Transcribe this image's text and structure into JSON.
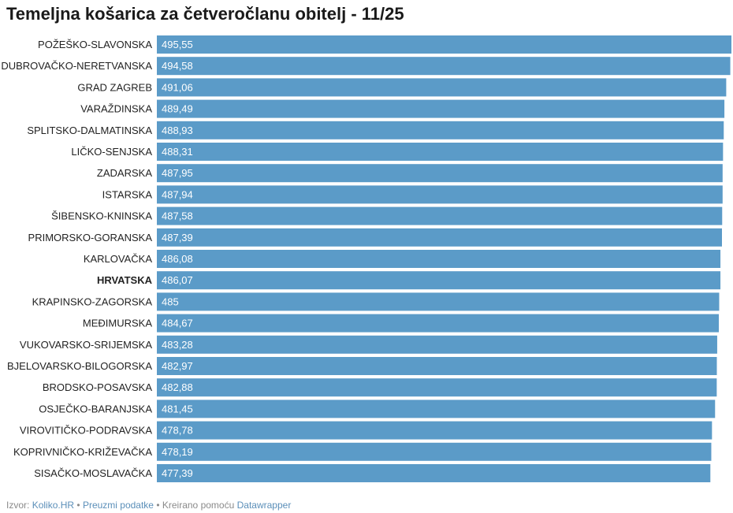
{
  "chart_data": {
    "type": "bar",
    "orientation": "horizontal",
    "title": "Temeljna košarica za četveročlanu obitelj - 11/25",
    "categories": [
      "POŽEŠKO-SLAVONSKA",
      "DUBROVAČKO-NERETVANSKA",
      "GRAD ZAGREB",
      "VARAŽDINSKA",
      "SPLITSKO-DALMATINSKA",
      "LIČKO-SENJSKA",
      "ZADARSKA",
      "ISTARSKA",
      "ŠIBENSKO-KNINSKA",
      "PRIMORSKO-GORANSKA",
      "KARLOVAČKA",
      "HRVATSKA",
      "KRAPINSKO-ZAGORSKA",
      "MEĐIMURSKA",
      "VUKOVARSKO-SRIJEMSKA",
      "BJELOVARSKO-BILOGORSKA",
      "BRODSKO-POSAVSKA",
      "OSJEČKO-BARANJSKA",
      "VIROVITIČKO-PODRAVSKA",
      "KOPRIVNIČKO-KRIŽEVAČKA",
      "SISAČKO-MOSLAVAČKA"
    ],
    "values": [
      495.55,
      494.58,
      491.06,
      489.49,
      488.93,
      488.31,
      487.95,
      487.94,
      487.58,
      487.39,
      486.08,
      486.07,
      485,
      484.67,
      483.28,
      482.97,
      482.88,
      481.45,
      478.78,
      478.19,
      477.39
    ],
    "value_labels": [
      "495,55",
      "494,58",
      "491,06",
      "489,49",
      "488,93",
      "488,31",
      "487,95",
      "487,94",
      "487,58",
      "487,39",
      "486,08",
      "486,07",
      "485",
      "484,67",
      "483,28",
      "482,97",
      "482,88",
      "481,45",
      "478,78",
      "478,19",
      "477,39"
    ],
    "highlight": [
      "HRVATSKA"
    ],
    "xlim": [
      0,
      495.55
    ],
    "bar_color": "#5b9bc8",
    "label_color": "#ffffff",
    "grid": false,
    "legend": "none"
  },
  "footer": {
    "source_prefix": "Izvor:",
    "source_name": "Koliko.HR",
    "separator": "•",
    "download_label": "Preuzmi podatke",
    "created_prefix": "Kreirano pomoću",
    "tool_name": "Datawrapper"
  }
}
